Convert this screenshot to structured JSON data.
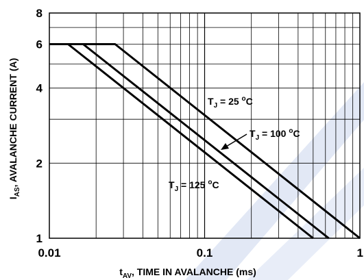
{
  "chart_data": {
    "type": "line",
    "xlabel": {
      "main": "t",
      "sub": "AV",
      "rest": ", TIME IN AVALANCHE (ms)"
    },
    "ylabel": {
      "main": "I",
      "sub": "AS",
      "rest": ", AVALANCHE CURRENT (A)"
    },
    "xscale": "log",
    "yscale": "log",
    "xlim": [
      0.01,
      1
    ],
    "ylim": [
      1,
      8
    ],
    "xticks": [
      {
        "value": 0.01,
        "label": "0.01"
      },
      {
        "value": 0.1,
        "label": "0.1"
      },
      {
        "value": 1,
        "label": "1"
      }
    ],
    "yticks": [
      {
        "value": 1,
        "label": "1"
      },
      {
        "value": 2,
        "label": "2"
      },
      {
        "value": 4,
        "label": "4"
      },
      {
        "value": 6,
        "label": "6"
      },
      {
        "value": 8,
        "label": "8"
      }
    ],
    "grid": true,
    "series": [
      {
        "name": "T_J = 25 oC",
        "x": [
          0.01,
          0.0265,
          1.0
        ],
        "y": [
          6.0,
          6.0,
          1.0
        ]
      },
      {
        "name": "T_J = 100 oC",
        "x": [
          0.01,
          0.0165,
          0.63
        ],
        "y": [
          6.0,
          6.0,
          1.0
        ]
      },
      {
        "name": "T_J = 125 oC",
        "x": [
          0.01,
          0.0132,
          0.5
        ],
        "y": [
          6.0,
          6.0,
          1.0
        ]
      }
    ],
    "annotations": [
      {
        "main": "T",
        "sub": "J",
        "rest": " = 25 ",
        "sup": "o",
        "unit": "C"
      },
      {
        "main": "T",
        "sub": "J",
        "rest": " = 100 ",
        "sup": "o",
        "unit": "C"
      },
      {
        "main": "T",
        "sub": "J",
        "rest": " = 125 ",
        "sup": "o",
        "unit": "C"
      }
    ]
  }
}
